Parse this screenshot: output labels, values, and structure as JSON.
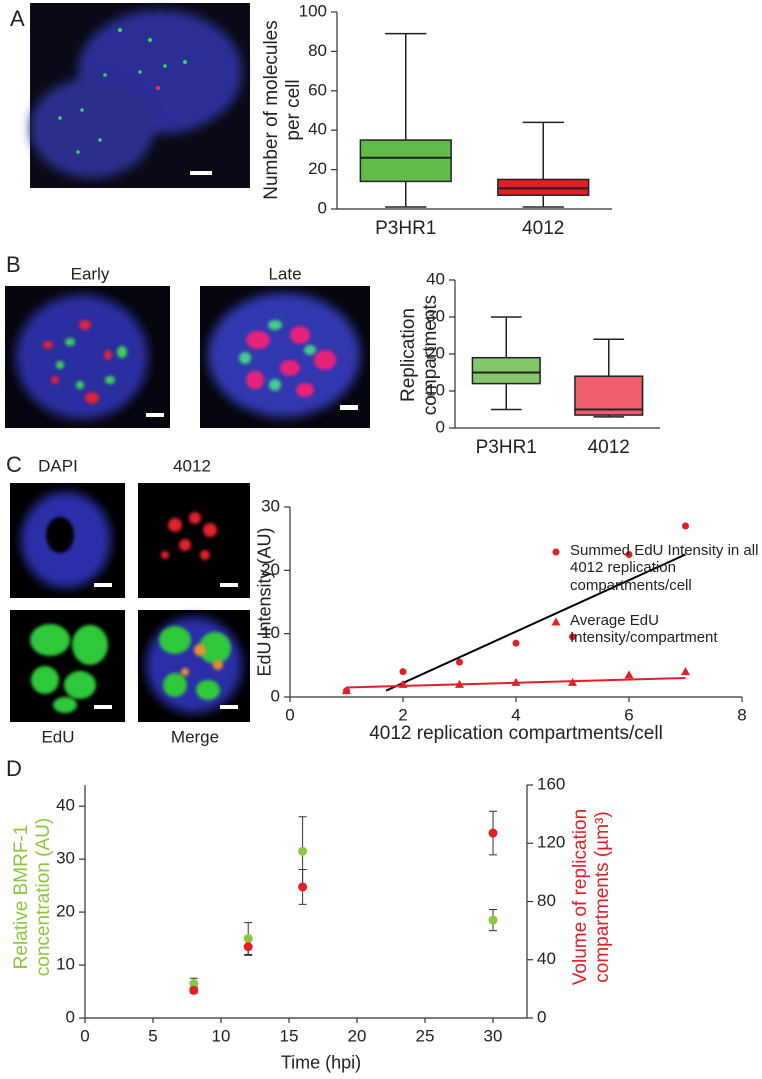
{
  "figure": {
    "panel_labels": [
      "A",
      "B",
      "C",
      "D"
    ],
    "image_labels": [
      "Early",
      "Late",
      "DAPI",
      "4012",
      "EdU",
      "Merge"
    ]
  },
  "chart_data": [
    {
      "type": "box",
      "ylabel": "Number of molecules per cell",
      "categories": [
        "P3HR1",
        "4012"
      ],
      "colors": [
        "#62bb46",
        "#e31e26"
      ],
      "min": [
        1,
        1
      ],
      "q1": [
        14,
        7
      ],
      "median": [
        26,
        10.5
      ],
      "q3": [
        35,
        15
      ],
      "max": [
        89,
        44
      ],
      "ylim": [
        0,
        100
      ],
      "yticks": [
        0,
        20,
        40,
        60,
        80,
        100
      ]
    },
    {
      "type": "box",
      "ylabel": "Replication compartments",
      "categories": [
        "P3HR1",
        "4012"
      ],
      "colors": [
        "#86c66a",
        "#ef5f6b"
      ],
      "min": [
        5,
        3
      ],
      "q1": [
        12,
        3.5
      ],
      "median": [
        15,
        5
      ],
      "q3": [
        19,
        14
      ],
      "max": [
        30,
        24
      ],
      "ylim": [
        0,
        40
      ],
      "yticks": [
        0,
        10,
        20,
        30,
        40
      ]
    },
    {
      "type": "scatter",
      "xlabel": "4012 replication compartments/cell",
      "ylabel": "EdU Intensity (AU)",
      "xlim": [
        0,
        8
      ],
      "xticks": [
        0,
        2,
        4,
        6,
        8
      ],
      "ylim": [
        0,
        30
      ],
      "yticks": [
        0,
        10,
        20,
        30
      ],
      "series": [
        {
          "name": "Summed EdU Intensity in all 4012 replication compartments/cell",
          "marker": "circle",
          "color": "#e31e26",
          "x": [
            1,
            2,
            3,
            4,
            5,
            6,
            7
          ],
          "values": [
            1,
            4,
            5.5,
            8.5,
            9.5,
            22.5,
            27
          ]
        },
        {
          "name": "Average EdU Intensity/compartment",
          "marker": "triangle",
          "color": "#e31e26",
          "x": [
            1,
            2,
            3,
            4,
            5,
            6,
            7
          ],
          "values": [
            1,
            2,
            2,
            2.3,
            2.3,
            3.5,
            4
          ]
        }
      ],
      "trendlines": [
        {
          "color": "#000000",
          "x": [
            1.7,
            7
          ],
          "values": [
            1,
            22.5
          ]
        },
        {
          "color": "#e31e26",
          "x": [
            1,
            7
          ],
          "values": [
            1.5,
            3
          ]
        }
      ]
    },
    {
      "type": "errorbar",
      "xlabel": "Time (hpi)",
      "ylabel": "Relative BMRF-1 concentration (AU)",
      "ylabel_color": "#8cc63f",
      "y2label": "Volume of replication compartments (µm³)",
      "y2label_color": "#e31e26",
      "xlim": [
        0,
        32.5
      ],
      "xticks": [
        0,
        5,
        10,
        15,
        20,
        25,
        30
      ],
      "ylim": [
        0,
        44
      ],
      "yticks": [
        0,
        10,
        20,
        30,
        40
      ],
      "y2lim": [
        0,
        160
      ],
      "y2ticks": [
        0,
        40,
        80,
        120,
        160
      ],
      "series": [
        {
          "color": "#8cc63f",
          "x": [
            8,
            12,
            16,
            30
          ],
          "values": [
            6.5,
            15,
            31.5,
            18.5
          ],
          "errors": [
            1,
            3,
            6.5,
            2
          ]
        },
        {
          "axis": "y2",
          "color": "#e31e26",
          "x": [
            8,
            12,
            16,
            30
          ],
          "values": [
            19,
            49,
            90,
            127
          ],
          "errors": [
            2,
            6,
            12,
            15
          ]
        }
      ]
    }
  ]
}
